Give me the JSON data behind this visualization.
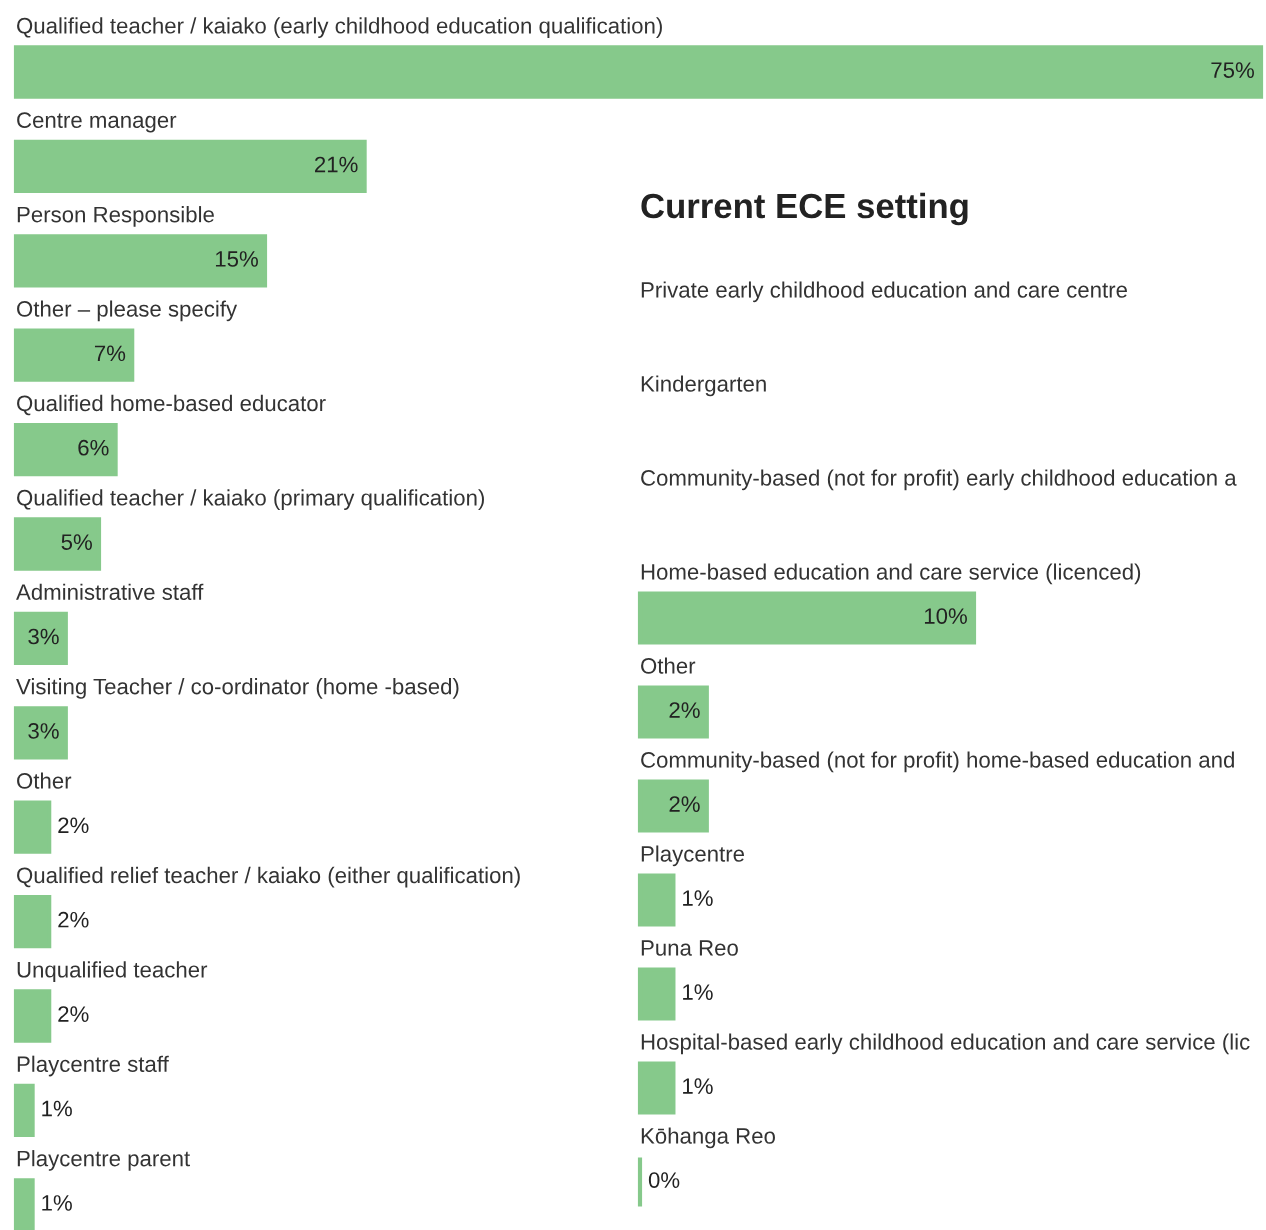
{
  "chart_data": [
    {
      "type": "bar",
      "orientation": "horizontal",
      "categories": [
        "Qualified teacher / kaiako (early childhood education qualification)",
        "Centre manager",
        "Person Responsible",
        "Other – please specify",
        "Qualified home-based educator",
        "Qualified teacher / kaiako (primary qualification)",
        "Administrative staff",
        "Visiting Teacher / co-ordinator (home -based)",
        "Other",
        "Qualified relief teacher / kaiako (either qualification)",
        "Unqualified teacher",
        "Playcentre staff",
        "Playcentre parent"
      ],
      "values": [
        75,
        21,
        15,
        7,
        6,
        5,
        3,
        3,
        2,
        2,
        2,
        1,
        1
      ],
      "value_labels": [
        "75%",
        "21%",
        "15%",
        "7%",
        "6%",
        "5%",
        "3%",
        "3%",
        "2%",
        "2%",
        "2%",
        "1%",
        "1%"
      ],
      "color": "#86c98b",
      "xlim": [
        0,
        75.3
      ]
    },
    {
      "type": "bar",
      "orientation": "horizontal",
      "title": "Current ECE setting",
      "categories": [
        "Private early childhood education and care centre",
        "Kindergarten",
        "Community-based (not for profit) early childhood education a",
        "Home-based education and care service (licenced)",
        "Other",
        "Community-based (not for profit) home-based education and",
        "Playcentre",
        "Puna Reo",
        "Hospital-based early childhood education and care service (lic",
        "Kōhanga Reo"
      ],
      "values": [
        null,
        null,
        null,
        10,
        2,
        2,
        1,
        1,
        1,
        0
      ],
      "value_labels": [
        null,
        null,
        null,
        "10%",
        "2%",
        "2%",
        "1%",
        "1%",
        "1%",
        "0%"
      ],
      "color": "#86c98b"
    }
  ]
}
